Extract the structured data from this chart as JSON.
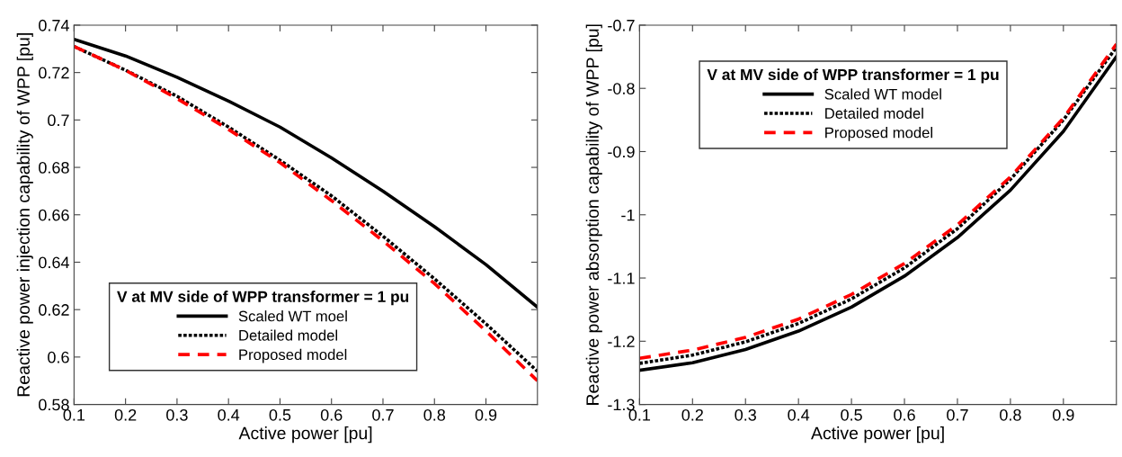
{
  "chart_data": [
    {
      "type": "line",
      "xlabel": "Active power [pu]",
      "ylabel": "Reactive power injection capability of WPP [pu]",
      "legend_title": "V at MV side of WPP transformer = 1 pu",
      "legend": "bottom left",
      "x": [
        0.1,
        0.2,
        0.3,
        0.4,
        0.5,
        0.6,
        0.7,
        0.8,
        0.9,
        1.0
      ],
      "xlim": [
        0.1,
        1.0
      ],
      "xticks": [
        0.1,
        0.2,
        0.3,
        0.4,
        0.5,
        0.6,
        0.7,
        0.8,
        0.9
      ],
      "ylim": [
        0.58,
        0.74
      ],
      "yticks": [
        0.58,
        0.6,
        0.62,
        0.64,
        0.66,
        0.68,
        0.7,
        0.72,
        0.74
      ],
      "grid": false,
      "series": [
        {
          "name": "Scaled WT moel",
          "color": "#000000",
          "line_style": "solid",
          "values": [
            0.734,
            0.727,
            0.718,
            0.708,
            0.697,
            0.684,
            0.67,
            0.655,
            0.639,
            0.621
          ]
        },
        {
          "name": "Detailed model",
          "color": "#000000",
          "line_style": "dotted",
          "values": [
            0.731,
            0.721,
            0.71,
            0.697,
            0.683,
            0.668,
            0.651,
            0.633,
            0.614,
            0.594
          ]
        },
        {
          "name": "Proposed model",
          "color": "#ff0000",
          "line_style": "dashed",
          "values": [
            0.731,
            0.721,
            0.709,
            0.696,
            0.682,
            0.666,
            0.649,
            0.631,
            0.611,
            0.59
          ]
        }
      ]
    },
    {
      "type": "line",
      "xlabel": "Active power [pu]",
      "ylabel": "Reactive power absorption capability of WPP [pu]",
      "legend_title": "V at MV side of WPP transformer = 1 pu",
      "legend": "top left",
      "x": [
        0.1,
        0.2,
        0.3,
        0.4,
        0.5,
        0.6,
        0.7,
        0.8,
        0.9,
        1.0
      ],
      "xlim": [
        0.1,
        1.0
      ],
      "xticks": [
        0.1,
        0.2,
        0.3,
        0.4,
        0.5,
        0.6,
        0.7,
        0.8,
        0.9
      ],
      "ylim": [
        -1.3,
        -0.7
      ],
      "yticks": [
        -1.3,
        -1.2,
        -1.1,
        -1,
        -0.9,
        -0.8,
        -0.7
      ],
      "grid": false,
      "series": [
        {
          "name": "Scaled WT model",
          "color": "#000000",
          "line_style": "solid",
          "values": [
            -1.246,
            -1.234,
            -1.213,
            -1.184,
            -1.146,
            -1.097,
            -1.036,
            -0.961,
            -0.868,
            -0.75
          ]
        },
        {
          "name": "Detailed model",
          "color": "#000000",
          "line_style": "dotted",
          "values": [
            -1.235,
            -1.222,
            -1.201,
            -1.172,
            -1.133,
            -1.084,
            -1.022,
            -0.944,
            -0.85,
            -0.735
          ]
        },
        {
          "name": "Proposed model",
          "color": "#ff0000",
          "line_style": "dashed",
          "values": [
            -1.227,
            -1.214,
            -1.194,
            -1.165,
            -1.126,
            -1.077,
            -1.016,
            -0.94,
            -0.847,
            -0.73
          ]
        }
      ]
    }
  ]
}
